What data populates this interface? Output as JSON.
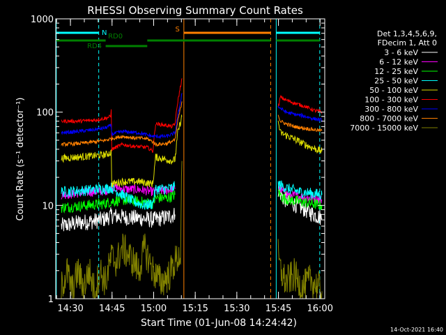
{
  "chart_data": {
    "type": "line",
    "title": "RHESSI Observing Summary Count Rates",
    "xlabel": "Start Time (01-Jun-08 14:24:42)",
    "ylabel": "Count Rate (s⁻¹ detector⁻¹)",
    "x_units": "minutes since 14:24:42",
    "xlim": [
      0,
      97
    ],
    "ylim": [
      1,
      1000
    ],
    "yscale": "log",
    "x_ticks": [
      {
        "at": 5.3,
        "label": "14:30"
      },
      {
        "at": 20.3,
        "label": "14:45"
      },
      {
        "at": 35.3,
        "label": "15:00"
      },
      {
        "at": 50.3,
        "label": "15:15"
      },
      {
        "at": 65.3,
        "label": "15:30"
      },
      {
        "at": 80.3,
        "label": "15:45"
      },
      {
        "at": 95.3,
        "label": "16:00"
      }
    ],
    "y_ticks": [
      {
        "at": 1,
        "label": "1"
      },
      {
        "at": 10,
        "label": "10"
      },
      {
        "at": 100,
        "label": "100"
      },
      {
        "at": 1000,
        "label": "1000"
      }
    ],
    "legend": {
      "placement": "right",
      "header": [
        "Det 1,3,4,5,6,9,",
        "FDecim 1, Att 0"
      ]
    },
    "series": [
      {
        "name": "3 - 6 keV",
        "color": "#ffffff",
        "segments": [
          [
            [
              2,
              6
            ],
            [
              8,
              6.5
            ],
            [
              14,
              6.8
            ],
            [
              18,
              7.2
            ],
            [
              20,
              7.8
            ],
            [
              24,
              7.5
            ],
            [
              30,
              7.3
            ],
            [
              35,
              7
            ],
            [
              40,
              7.5
            ],
            [
              43,
              8
            ]
          ],
          [
            [
              80.2,
              15
            ],
            [
              82,
              12
            ],
            [
              84,
              11
            ],
            [
              87,
              10
            ],
            [
              90,
              9
            ],
            [
              93,
              8
            ],
            [
              96,
              7.3
            ]
          ]
        ]
      },
      {
        "name": "6 - 12 keV",
        "color": "#ff00ff",
        "segments": [
          [
            [
              2,
              13
            ],
            [
              8,
              13.5
            ],
            [
              14,
              14
            ],
            [
              18,
              14.3
            ],
            [
              19.5,
              15
            ],
            [
              20,
              16
            ],
            [
              24,
              15
            ],
            [
              30,
              14.8
            ],
            [
              35,
              14
            ],
            [
              40,
              14.5
            ],
            [
              42,
              14.8
            ],
            [
              43,
              15
            ]
          ],
          [
            [
              80.2,
              16
            ],
            [
              82,
              14
            ],
            [
              84,
              13
            ],
            [
              88,
              12.5
            ],
            [
              92,
              12
            ],
            [
              96,
              11.5
            ]
          ]
        ]
      },
      {
        "name": "12 - 25 keV",
        "color": "#00ff00",
        "segments": [
          [
            [
              2,
              9.5
            ],
            [
              8,
              9.8
            ],
            [
              14,
              10.2
            ],
            [
              18,
              10.5
            ],
            [
              20,
              11
            ],
            [
              24,
              11.5
            ],
            [
              30,
              11
            ],
            [
              35,
              10.5
            ],
            [
              36,
              12
            ],
            [
              40,
              12
            ],
            [
              42,
              12.5
            ],
            [
              43,
              13
            ]
          ],
          [
            [
              80.2,
              14
            ],
            [
              82,
              12
            ],
            [
              84,
              11.5
            ],
            [
              88,
              11
            ],
            [
              92,
              10.5
            ],
            [
              96,
              10
            ]
          ]
        ]
      },
      {
        "name": "25 - 50 keV",
        "color": "#00ffff",
        "segments": [
          [
            [
              2,
              14
            ],
            [
              8,
              14.3
            ],
            [
              14,
              14.8
            ],
            [
              18,
              15.2
            ],
            [
              20,
              15.5
            ],
            [
              24,
              13
            ],
            [
              28,
              11
            ],
            [
              32,
              10
            ],
            [
              35,
              10.5
            ],
            [
              36,
              15
            ],
            [
              40,
              15
            ],
            [
              42,
              15.5
            ],
            [
              43,
              16
            ]
          ],
          [
            [
              80.2,
              17
            ],
            [
              82,
              16
            ],
            [
              84,
              15
            ],
            [
              88,
              14
            ],
            [
              92,
              13.5
            ],
            [
              96,
              13
            ]
          ]
        ]
      },
      {
        "name": "50 - 100 keV",
        "color": "#dddd00",
        "segments": [
          [
            [
              2,
              32
            ],
            [
              8,
              33
            ],
            [
              14,
              34
            ],
            [
              18,
              35
            ],
            [
              20,
              37
            ],
            [
              20.2,
              17
            ],
            [
              24,
              18
            ],
            [
              30,
              18
            ],
            [
              35,
              17
            ],
            [
              36,
              33
            ],
            [
              40,
              31
            ],
            [
              42,
              30
            ],
            [
              43,
              31
            ],
            [
              44,
              60
            ],
            [
              45.5,
              90
            ]
          ],
          [
            [
              80.2,
              80
            ],
            [
              81,
              60
            ],
            [
              84,
              55
            ],
            [
              88,
              48
            ],
            [
              92,
              42
            ],
            [
              96,
              38
            ]
          ]
        ]
      },
      {
        "name": "100 - 300 keV",
        "color": "#ff0000",
        "segments": [
          [
            [
              2,
              80
            ],
            [
              8,
              80
            ],
            [
              14,
              82
            ],
            [
              18,
              86
            ],
            [
              19.8,
              90
            ],
            [
              20,
              105
            ],
            [
              20.2,
              40
            ],
            [
              24,
              45
            ],
            [
              28,
              43
            ],
            [
              33,
              42
            ],
            [
              35,
              38
            ],
            [
              36,
              75
            ],
            [
              40,
              72
            ],
            [
              42,
              70
            ],
            [
              43,
              75
            ],
            [
              44,
              130
            ],
            [
              45.5,
              230
            ]
          ],
          [
            [
              80.2,
              110
            ],
            [
              81,
              145
            ],
            [
              83,
              135
            ],
            [
              86,
              125
            ],
            [
              90,
              115
            ],
            [
              93,
              105
            ],
            [
              96,
              100
            ]
          ]
        ]
      },
      {
        "name": "300 - 800 keV",
        "color": "#0000ff",
        "segments": [
          [
            [
              2,
              60
            ],
            [
              8,
              62
            ],
            [
              14,
              65
            ],
            [
              18,
              68
            ],
            [
              20,
              72
            ],
            [
              20.2,
              58
            ],
            [
              24,
              62
            ],
            [
              30,
              60
            ],
            [
              35,
              55
            ],
            [
              36,
              55
            ],
            [
              40,
              55
            ],
            [
              42,
              58
            ],
            [
              43,
              60
            ],
            [
              44,
              90
            ],
            [
              45.5,
              160
            ]
          ],
          [
            [
              80.2,
              115
            ],
            [
              81,
              110
            ],
            [
              83,
              100
            ],
            [
              86,
              95
            ],
            [
              90,
              90
            ],
            [
              93,
              85
            ],
            [
              96,
              82
            ]
          ]
        ]
      },
      {
        "name": "800 - 7000 keV",
        "color": "#ff8000",
        "segments": [
          [
            [
              2,
              45
            ],
            [
              8,
              46
            ],
            [
              14,
              48
            ],
            [
              18,
              50
            ],
            [
              20,
              52
            ],
            [
              24,
              55
            ],
            [
              28,
              53
            ],
            [
              33,
              52
            ],
            [
              35,
              48
            ],
            [
              36,
              45
            ],
            [
              40,
              46
            ],
            [
              43,
              50
            ],
            [
              44,
              80
            ],
            [
              45.5,
              130
            ]
          ],
          [
            [
              80.2,
              95
            ],
            [
              81,
              80
            ],
            [
              83,
              75
            ],
            [
              86,
              70
            ],
            [
              90,
              67
            ],
            [
              93,
              65
            ],
            [
              96,
              63
            ]
          ]
        ]
      },
      {
        "name": "7000 - 15000 keV",
        "color": "#808000",
        "segments": [
          [
            [
              2,
              1.3
            ],
            [
              4,
              2
            ],
            [
              6,
              1.2
            ],
            [
              8,
              2
            ],
            [
              10,
              1.3
            ],
            [
              12,
              2
            ],
            [
              14,
              1.2
            ],
            [
              16,
              2
            ],
            [
              18,
              1.5
            ],
            [
              20,
              2.8
            ],
            [
              22,
              2.5
            ],
            [
              24,
              3.5
            ],
            [
              26,
              3
            ],
            [
              28,
              2.5
            ],
            [
              30,
              2
            ],
            [
              32,
              3.5
            ],
            [
              35,
              2
            ],
            [
              38,
              1.5
            ],
            [
              41,
              1.8
            ],
            [
              43,
              2.5
            ],
            [
              45,
              3
            ],
            [
              45.5,
              30
            ]
          ],
          [
            [
              80.2,
              3
            ],
            [
              81,
              2
            ],
            [
              83,
              1.5
            ],
            [
              86,
              1.8
            ],
            [
              89,
              1.3
            ],
            [
              92,
              1.6
            ],
            [
              96,
              1.2
            ]
          ]
        ]
      }
    ],
    "annotations": {
      "vertical_lines": [
        {
          "x": 0.2,
          "color": "#00ffff",
          "style": "solid"
        },
        {
          "x": 15.5,
          "color": "#00ffff",
          "style": "dashed"
        },
        {
          "x": 46.2,
          "color": "#ff8000",
          "style": "solid"
        },
        {
          "x": 77.5,
          "color": "#ff8000",
          "style": "dashed"
        },
        {
          "x": 79.5,
          "color": "#00ffff",
          "style": "solid"
        },
        {
          "x": 95.2,
          "color": "#00ffff",
          "style": "dashed"
        }
      ],
      "flags": [
        {
          "label": "N",
          "color": "#00ffff",
          "level": "top",
          "intervals": [
            [
              0.2,
              15.5
            ],
            [
              79.5,
              95.2
            ]
          ]
        },
        {
          "label": "S",
          "color": "#ff8000",
          "level": "top",
          "intervals": [
            [
              46.2,
              77.5
            ]
          ]
        },
        {
          "label": "RD0",
          "color": "#008000",
          "level": "mid",
          "intervals": [
            [
              0.2,
              18
            ],
            [
              33,
              77.5
            ],
            [
              79.5,
              95.2
            ]
          ]
        },
        {
          "label": "RD4",
          "color": "#008000",
          "level": "low",
          "intervals": [
            [
              18,
              33
            ]
          ]
        }
      ]
    },
    "timestamp": "14-Oct-2021 16:40"
  }
}
